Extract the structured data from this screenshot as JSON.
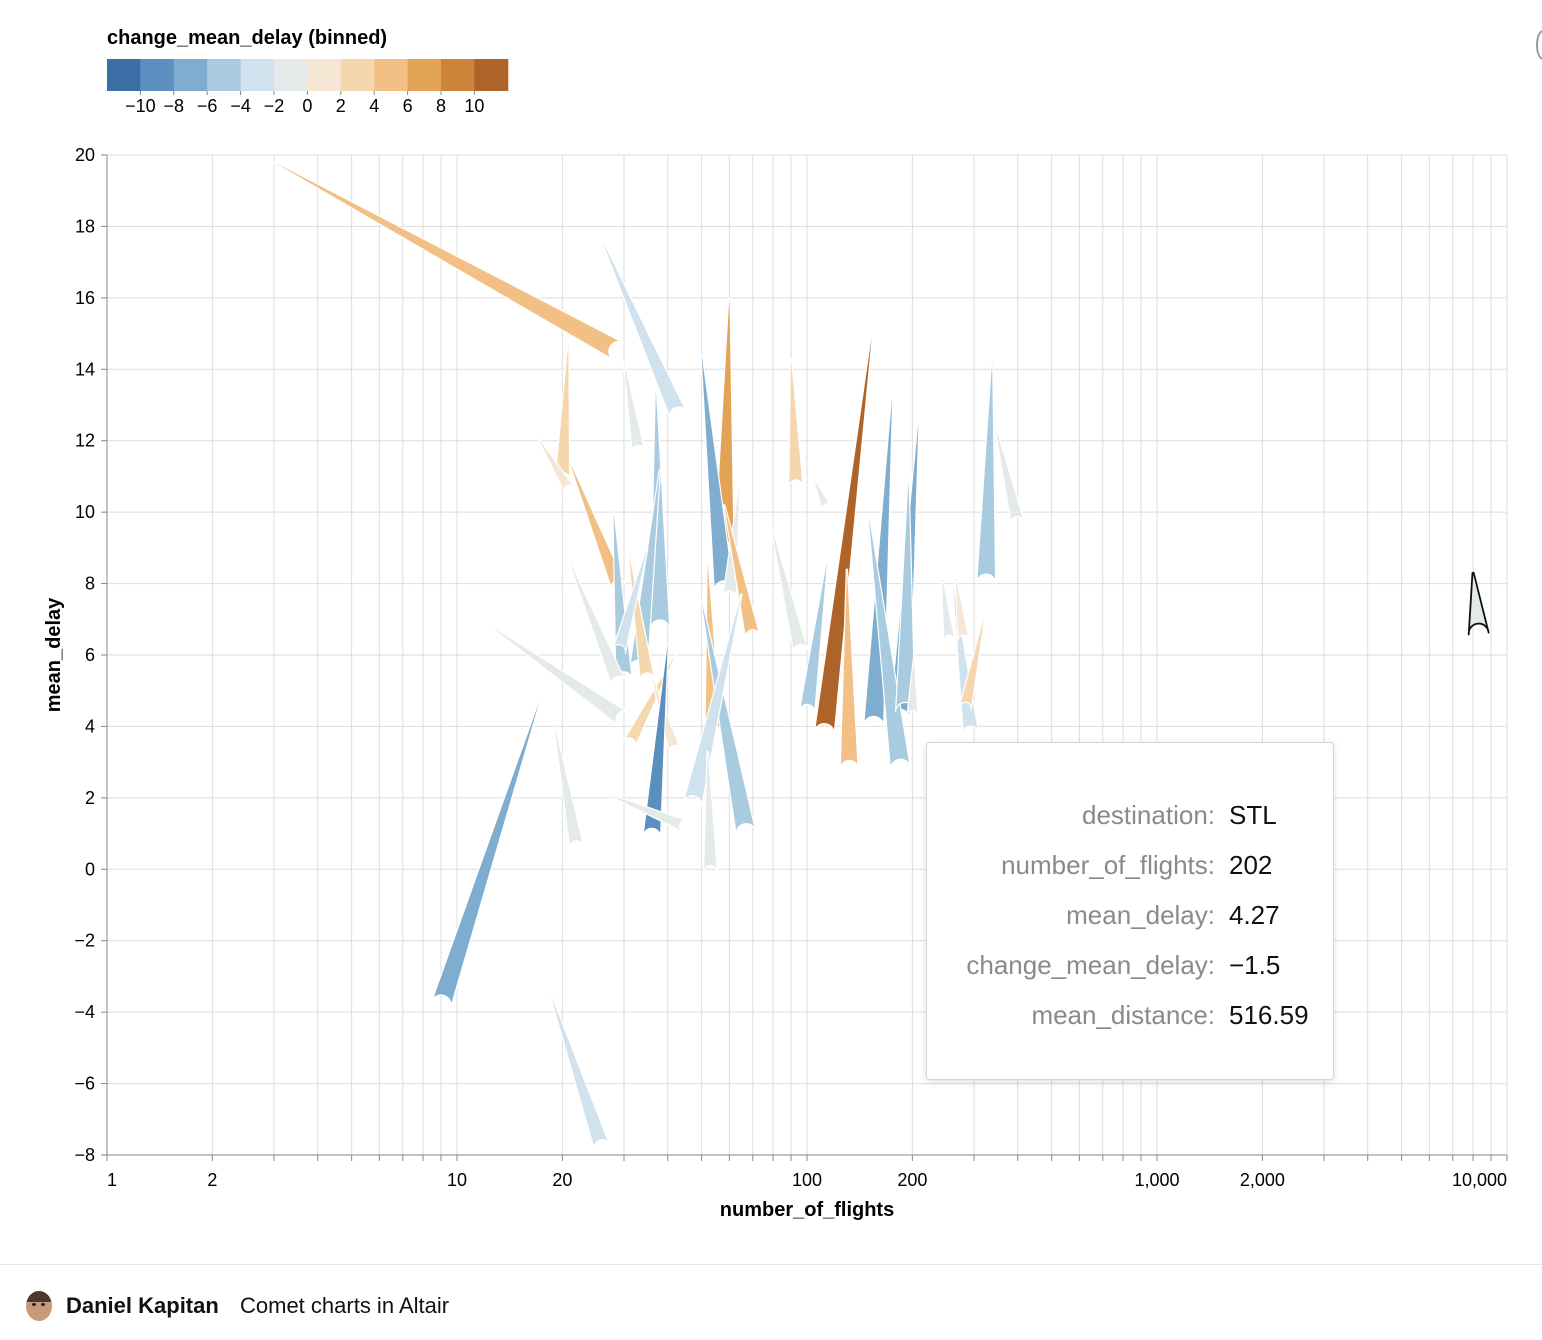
{
  "chart_data": {
    "type": "scatter",
    "mark": "comet",
    "xscale": "log",
    "xlim": [
      1,
      10000
    ],
    "ylim": [
      -8,
      20
    ],
    "xlabel": "number_of_flights",
    "ylabel": "mean_delay",
    "x_ticks": [
      1,
      2,
      10,
      20,
      100,
      200,
      1000,
      2000,
      10000
    ],
    "x_tick_labels": [
      "1",
      "2",
      "10",
      "20",
      "100",
      "200",
      "1,000",
      "2,000",
      "10,000"
    ],
    "y_ticks": [
      -8,
      -6,
      -4,
      -2,
      0,
      2,
      4,
      6,
      8,
      10,
      12,
      14,
      16,
      18,
      20
    ],
    "y_tick_labels": [
      "−8",
      "−6",
      "−4",
      "−2",
      "0",
      "2",
      "4",
      "6",
      "8",
      "10",
      "12",
      "14",
      "16",
      "18",
      "20"
    ],
    "grid": true,
    "legend": {
      "title": "change_mean_delay (binned)",
      "placement": "top-left",
      "colors": [
        "#3b6ea5",
        "#5b8fc0",
        "#7fadd0",
        "#a8cbe0",
        "#d0e2ee",
        "#e4e9e9",
        "#f5e7d4",
        "#f5d7ae",
        "#f2c085",
        "#e3a357",
        "#cc833a",
        "#ae6428"
      ],
      "labels": [
        "−10",
        "−8",
        "−6",
        "−4",
        "−2",
        "0",
        "2",
        "4",
        "6",
        "8",
        "10"
      ]
    },
    "comets": [
      {
        "x0": 3.0,
        "y0": 19.8,
        "x1": 29,
        "y1": 14.5,
        "change": 5
      },
      {
        "x0": 20.8,
        "y0": 14.7,
        "x1": 20,
        "y1": 10.9,
        "change": 3
      },
      {
        "x0": 26,
        "y0": 17.6,
        "x1": 43,
        "y1": 12.7,
        "change": -3
      },
      {
        "x0": 30,
        "y0": 14.2,
        "x1": 33,
        "y1": 11.7,
        "change": -1
      },
      {
        "x0": 17,
        "y0": 12.1,
        "x1": 21,
        "y1": 10.6,
        "change": 0
      },
      {
        "x0": 21,
        "y0": 11.4,
        "x1": 29,
        "y1": 7.9,
        "change": 5
      },
      {
        "x0": 60,
        "y0": 16.0,
        "x1": 58,
        "y1": 8.9,
        "change": 7
      },
      {
        "x0": 90,
        "y0": 14.3,
        "x1": 93,
        "y1": 10.7,
        "change": 3
      },
      {
        "x0": 153,
        "y0": 14.9,
        "x1": 112,
        "y1": 3.8,
        "change": 10
      },
      {
        "x0": 50,
        "y0": 14.4,
        "x1": 58,
        "y1": 7.8,
        "change": -8
      },
      {
        "x0": 37,
        "y0": 13.4,
        "x1": 38,
        "y1": 6.7,
        "change": -5
      },
      {
        "x0": 38,
        "y0": 11.2,
        "x1": 33,
        "y1": 5.6,
        "change": -5
      },
      {
        "x0": 175,
        "y0": 13.2,
        "x1": 155,
        "y1": 4.0,
        "change": -8
      },
      {
        "x0": 208,
        "y0": 12.5,
        "x1": 184,
        "y1": 4.2,
        "change": -8
      },
      {
        "x0": 338,
        "y0": 14.2,
        "x1": 325,
        "y1": 8.0,
        "change": -6
      },
      {
        "x0": 345,
        "y0": 12.4,
        "x1": 400,
        "y1": 9.7,
        "change": -2
      },
      {
        "x0": 28,
        "y0": 10.0,
        "x1": 30,
        "y1": 5.3,
        "change": -6
      },
      {
        "x0": 64,
        "y0": 10.7,
        "x1": 60,
        "y1": 7.6,
        "change": -2
      },
      {
        "x0": 58,
        "y0": 10.2,
        "x1": 70,
        "y1": 6.5,
        "change": 5
      },
      {
        "x0": 79,
        "y0": 9.6,
        "x1": 96,
        "y1": 6.1,
        "change": -2
      },
      {
        "x0": 150,
        "y0": 9.9,
        "x1": 185,
        "y1": 2.8,
        "change": -6
      },
      {
        "x0": 195,
        "y0": 10.9,
        "x1": 191,
        "y1": 4.4,
        "change": -6
      },
      {
        "x0": 105,
        "y0": 10.9,
        "x1": 114,
        "y1": 10.1,
        "change": -1
      },
      {
        "x0": 114,
        "y0": 8.6,
        "x1": 100,
        "y1": 4.4,
        "change": -6
      },
      {
        "x0": 130,
        "y0": 8.4,
        "x1": 132,
        "y1": 2.8,
        "change": 4
      },
      {
        "x0": 31,
        "y0": 8.8,
        "x1": 35,
        "y1": 5.3,
        "change": 2
      },
      {
        "x0": 35,
        "y0": 9.0,
        "x1": 29,
        "y1": 6.1,
        "change": -3
      },
      {
        "x0": 52,
        "y0": 8.6,
        "x1": 54,
        "y1": 3.8,
        "change": 4
      },
      {
        "x0": 21,
        "y0": 8.6,
        "x1": 29,
        "y1": 5.2,
        "change": -1
      },
      {
        "x0": 12.5,
        "y0": 6.8,
        "x1": 30,
        "y1": 4.2,
        "change": -2
      },
      {
        "x0": 17.2,
        "y0": 4.7,
        "x1": 9.0,
        "y1": -3.8,
        "change": -7
      },
      {
        "x0": 42,
        "y0": 6.0,
        "x1": 31,
        "y1": 3.5,
        "change": 3
      },
      {
        "x0": 36,
        "y0": 5.4,
        "x1": 42,
        "y1": 3.3,
        "change": 1
      },
      {
        "x0": 40,
        "y0": 6.3,
        "x1": 36,
        "y1": 0.9,
        "change": -9
      },
      {
        "x0": 50,
        "y0": 7.5,
        "x1": 67,
        "y1": 1.0,
        "change": -5
      },
      {
        "x0": 65,
        "y0": 7.7,
        "x1": 47,
        "y1": 1.8,
        "change": -3
      },
      {
        "x0": 19,
        "y0": 4.0,
        "x1": 22,
        "y1": 0.6,
        "change": -2
      },
      {
        "x0": 27,
        "y0": 2.1,
        "x1": 45,
        "y1": 1.2,
        "change": -1
      },
      {
        "x0": 52,
        "y0": 3.3,
        "x1": 53,
        "y1": -0.1,
        "change": -2
      },
      {
        "x0": 18.5,
        "y0": -3.5,
        "x1": 26,
        "y1": -7.8,
        "change": -4
      },
      {
        "x0": 262,
        "y0": 7.9,
        "x1": 294,
        "y1": 3.8,
        "change": -4
      },
      {
        "x0": 243,
        "y0": 8.2,
        "x1": 255,
        "y1": 6.4,
        "change": -1
      },
      {
        "x0": 266,
        "y0": 8.2,
        "x1": 280,
        "y1": 6.4,
        "change": 1
      },
      {
        "x0": 320,
        "y0": 7.0,
        "x1": 283,
        "y1": 4.5,
        "change": 3
      },
      {
        "x0": 202,
        "y0": 5.9,
        "x1": 200,
        "y1": 4.3,
        "change": -1
      },
      {
        "x0": 8000,
        "y0": 8.3,
        "x1": 8300,
        "y1": 6.6,
        "change": -1,
        "selected": true
      }
    ]
  },
  "tooltip": {
    "rows": [
      {
        "key": "destination:",
        "value": "STL"
      },
      {
        "key": "number_of_flights:",
        "value": "202"
      },
      {
        "key": "mean_delay:",
        "value": "4.27"
      },
      {
        "key": "change_mean_delay:",
        "value": "−1.5"
      },
      {
        "key": "mean_distance:",
        "value": "516.59"
      }
    ]
  },
  "footer": {
    "author": "Daniel Kapitan",
    "title": "Comet charts in Altair"
  }
}
